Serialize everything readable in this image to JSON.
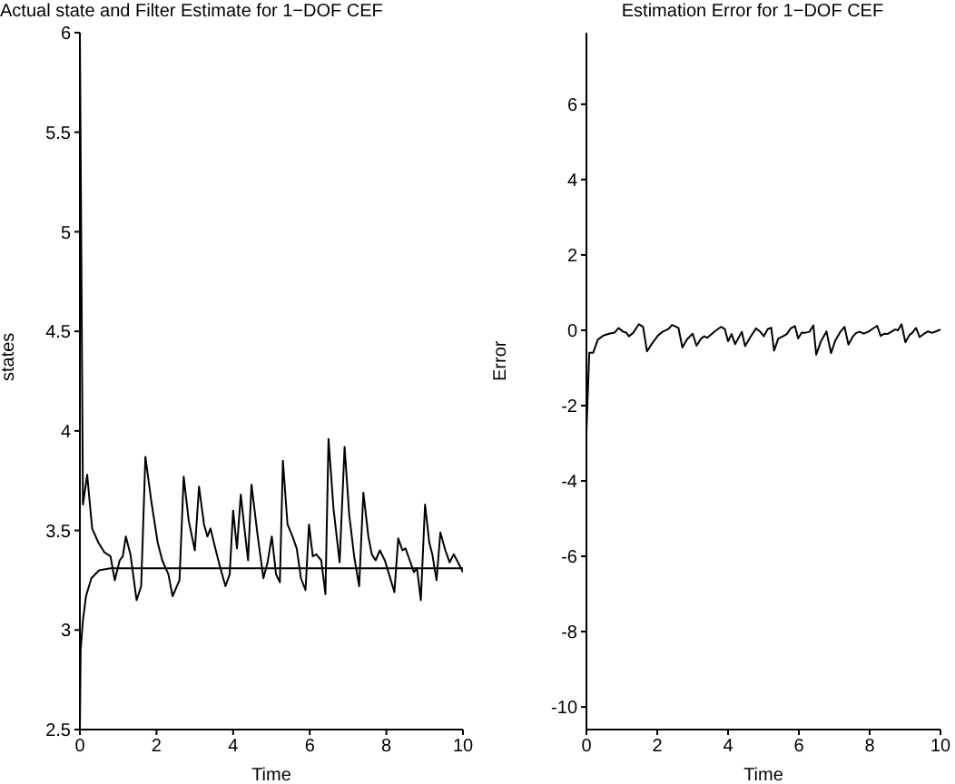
{
  "chart_data": [
    {
      "type": "line",
      "title": "Actual state and Filter Estimate for 1−DOF CEF",
      "xlabel": "Time",
      "ylabel": "states",
      "xlim": [
        0,
        10
      ],
      "ylim": [
        2.5,
        6
      ],
      "xticks": [
        0,
        2,
        4,
        6,
        8,
        10
      ],
      "yticks": [
        2.5,
        3,
        3.5,
        4,
        4.5,
        5,
        5.5,
        6
      ],
      "line_style": "solid",
      "series": [
        {
          "color": "#000000",
          "x": [
            0,
            0.08,
            0.19,
            0.32,
            0.48,
            0.64,
            0.8,
            0.91,
            1.04,
            1.12,
            1.2,
            1.32,
            1.48,
            1.6,
            1.71,
            1.87,
            2.03,
            2.15,
            2.31,
            2.42,
            2.6,
            2.71,
            2.84,
            3.0,
            3.11,
            3.24,
            3.33,
            3.41,
            3.51,
            3.64,
            3.8,
            3.91,
            4.0,
            4.1,
            4.2,
            4.29,
            4.39,
            4.48,
            4.63,
            4.79,
            4.9,
            5.01,
            5.12,
            5.22,
            5.3,
            5.42,
            5.55,
            5.66,
            5.77,
            5.89,
            5.98,
            6.08,
            6.17,
            6.3,
            6.41,
            6.49,
            6.62,
            6.78,
            6.91,
            7.03,
            7.16,
            7.29,
            7.4,
            7.53,
            7.62,
            7.72,
            7.83,
            7.96,
            8.07,
            8.21,
            8.31,
            8.42,
            8.5,
            8.61,
            8.72,
            8.8,
            8.9,
            9.01,
            9.12,
            9.2,
            9.31,
            9.41,
            9.54,
            9.65,
            9.76,
            9.87,
            10
          ],
          "values": [
            6,
            3.63,
            3.78,
            3.51,
            3.44,
            3.39,
            3.37,
            3.25,
            3.35,
            3.37,
            3.47,
            3.38,
            3.15,
            3.22,
            3.87,
            3.64,
            3.44,
            3.35,
            3.28,
            3.17,
            3.25,
            3.77,
            3.55,
            3.4,
            3.72,
            3.53,
            3.47,
            3.51,
            3.43,
            3.33,
            3.22,
            3.28,
            3.6,
            3.41,
            3.68,
            3.52,
            3.35,
            3.73,
            3.49,
            3.26,
            3.34,
            3.47,
            3.28,
            3.24,
            3.85,
            3.53,
            3.47,
            3.41,
            3.26,
            3.2,
            3.53,
            3.37,
            3.38,
            3.35,
            3.18,
            3.96,
            3.61,
            3.34,
            3.92,
            3.58,
            3.37,
            3.22,
            3.69,
            3.47,
            3.38,
            3.35,
            3.4,
            3.35,
            3.28,
            3.19,
            3.46,
            3.4,
            3.41,
            3.35,
            3.29,
            3.31,
            3.15,
            3.63,
            3.44,
            3.38,
            3.25,
            3.49,
            3.4,
            3.34,
            3.38,
            3.34,
            3.29
          ]
        },
        {
          "color": "#000000",
          "x": [
            0,
            0.02,
            0.08,
            0.16,
            0.3,
            0.5,
            0.8,
            10
          ],
          "values": [
            2.5,
            2.9,
            3.05,
            3.17,
            3.26,
            3.3,
            3.31,
            3.31
          ]
        }
      ]
    },
    {
      "type": "line",
      "title": "Estimation Error for 1−DOF CEF",
      "xlabel": "Time",
      "ylabel": "Error",
      "xlim": [
        0,
        10
      ],
      "ylim": [
        -10.6,
        7.9
      ],
      "xticks": [
        0,
        2,
        4,
        6,
        8,
        10
      ],
      "yticks": [
        -10,
        -8,
        -6,
        -4,
        -2,
        0,
        2,
        4,
        6
      ],
      "line_style": "solid",
      "series": [
        {
          "color": "#000000",
          "x": [
            0,
            0.08,
            0.19,
            0.32,
            0.48,
            0.64,
            0.8,
            0.91,
            1.04,
            1.12,
            1.2,
            1.32,
            1.48,
            1.6,
            1.71,
            1.87,
            2.03,
            2.15,
            2.31,
            2.42,
            2.6,
            2.71,
            2.84,
            3.0,
            3.11,
            3.24,
            3.33,
            3.41,
            3.51,
            3.64,
            3.8,
            3.91,
            4.0,
            4.1,
            4.2,
            4.29,
            4.39,
            4.48,
            4.63,
            4.79,
            4.9,
            5.01,
            5.12,
            5.22,
            5.3,
            5.42,
            5.55,
            5.66,
            5.77,
            5.89,
            5.98,
            6.08,
            6.17,
            6.3,
            6.41,
            6.49,
            6.62,
            6.78,
            6.91,
            7.03,
            7.16,
            7.29,
            7.4,
            7.53,
            7.62,
            7.72,
            7.83,
            7.96,
            8.07,
            8.21,
            8.31,
            8.42,
            8.5,
            8.61,
            8.72,
            8.8,
            8.9,
            9.01,
            9.12,
            9.2,
            9.31,
            9.41,
            9.54,
            9.65,
            9.76,
            9.87,
            10
          ],
          "values": [
            -2.7,
            -0.6,
            -0.6,
            -0.25,
            -0.14,
            -0.09,
            -0.06,
            0.06,
            -0.04,
            -0.06,
            -0.16,
            -0.07,
            0.16,
            0.09,
            -0.56,
            -0.33,
            -0.13,
            -0.04,
            0.03,
            0.14,
            0.06,
            -0.46,
            -0.24,
            -0.09,
            -0.41,
            -0.22,
            -0.16,
            -0.2,
            -0.12,
            -0.02,
            0.09,
            0.03,
            -0.29,
            -0.1,
            -0.37,
            -0.21,
            -0.04,
            -0.42,
            -0.18,
            0.05,
            -0.03,
            -0.16,
            0.03,
            0.07,
            -0.54,
            -0.22,
            -0.16,
            -0.1,
            0.05,
            0.11,
            -0.22,
            -0.06,
            -0.07,
            -0.04,
            0.13,
            -0.65,
            -0.3,
            -0.03,
            -0.61,
            -0.27,
            -0.06,
            0.09,
            -0.38,
            -0.16,
            -0.07,
            -0.04,
            -0.09,
            -0.04,
            0.03,
            0.12,
            -0.15,
            -0.09,
            -0.1,
            -0.04,
            0.02,
            0,
            0.16,
            -0.32,
            -0.13,
            -0.07,
            0.06,
            -0.18,
            -0.09,
            -0.03,
            -0.07,
            -0.03,
            0.02
          ]
        }
      ]
    }
  ]
}
